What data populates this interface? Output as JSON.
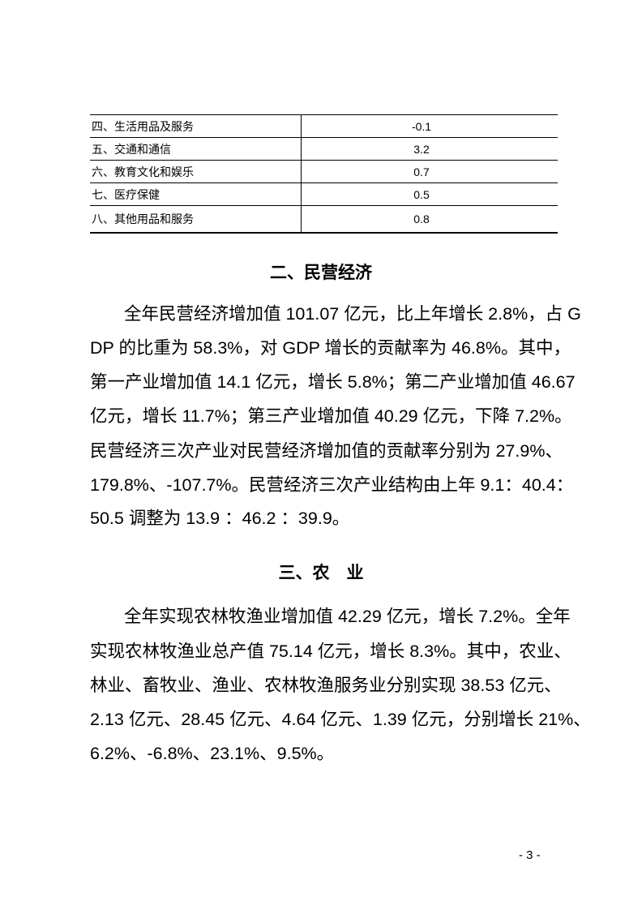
{
  "table": {
    "rows": [
      {
        "name": "四、生活用品及服务",
        "value": "-0.1"
      },
      {
        "name": "五、交通和通信",
        "value": "3.2"
      },
      {
        "name": "六、教育文化和娱乐",
        "value": "0.7"
      },
      {
        "name": "七、医疗保健",
        "value": "0.5"
      },
      {
        "name": "八、其他用品和服务",
        "value": "0.8"
      }
    ]
  },
  "sections": [
    {
      "heading": "二、民营经济",
      "lines": [
        "全年民营经济增加值 101.07 亿元，比上年增长 2.8%，占 G",
        "DP 的比重为 58.3%，对 GDP 增长的贡献率为 46.8%。其中，",
        "第一产业增加值 14.1 亿元，增长 5.8%；第二产业增加值 46.67",
        "亿元，增长 11.7%；第三产业增加值 40.29 亿元，下降 7.2%。",
        "民营经济三次产业对民营经济增加值的贡献率分别为 27.9%、",
        "179.8%、-107.7%。民营经济三次产业结构由上年 9.1：40.4：",
        "50.5 调整为 13.9 ：46.2 ：39.9。"
      ]
    },
    {
      "heading": "三、农　业",
      "lines": [
        "全年实现农林牧渔业增加值 42.29 亿元，增长 7.2%。全年",
        "实现农林牧渔业总产值 75.14 亿元，增长 8.3%。其中，农业、",
        "林业、畜牧业、渔业、农林牧渔服务业分别实现 38.53 亿元、",
        "2.13 亿元、28.45 亿元、4.64 亿元、1.39 亿元，分别增长 21%、",
        "6.2%、-6.8%、23.1%、9.5%。"
      ]
    }
  ],
  "page_number": "- 3 -"
}
